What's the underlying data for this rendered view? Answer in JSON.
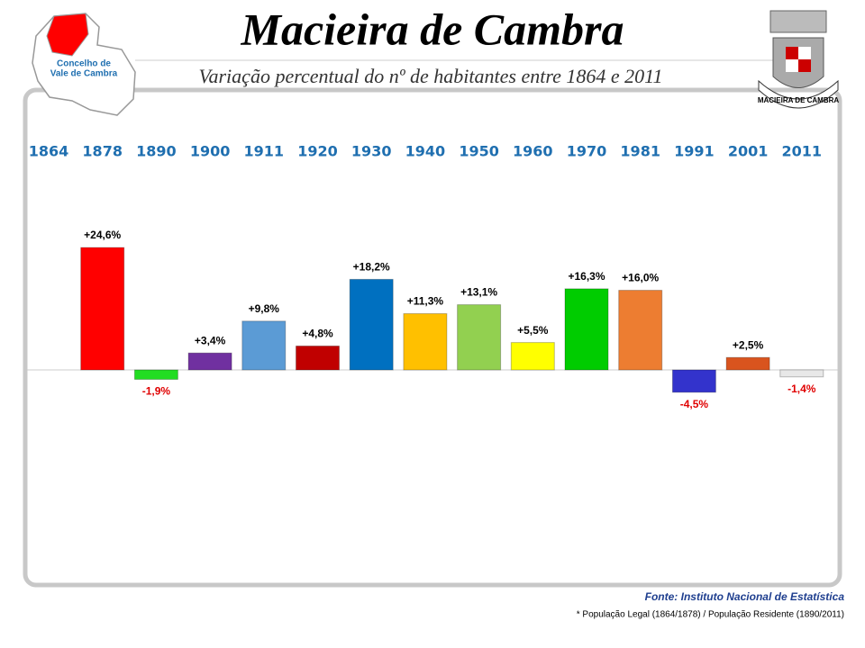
{
  "chart_data": {
    "type": "bar",
    "title": "Macieira de Cambra",
    "subtitle": "Variação percentual do nº de habitantes entre 1864 e 2011",
    "categories": [
      "1864",
      "1878",
      "1890",
      "1900",
      "1911",
      "1920",
      "1930",
      "1940",
      "1950",
      "1960",
      "1970",
      "1981",
      "1991",
      "2001",
      "2011"
    ],
    "values": [
      null,
      24.6,
      -1.9,
      3.4,
      9.8,
      4.8,
      18.2,
      11.3,
      13.1,
      5.5,
      16.3,
      16.0,
      -4.5,
      2.5,
      -1.4
    ],
    "value_labels": [
      null,
      "+24,6%",
      "-1,9%",
      "+3,4%",
      "+9,8%",
      "+4,8%",
      "+18,2%",
      "+11,3%",
      "+13,1%",
      "+5,5%",
      "+16,3%",
      "+16,0%",
      "-4,5%",
      "+2,5%",
      "-1,4%"
    ],
    "colors": [
      null,
      "#ff0000",
      "#22dd22",
      "#7030a0",
      "#5b9bd5",
      "#c00000",
      "#0070c0",
      "#ffc000",
      "#92d050",
      "#ffff00",
      "#00cc00",
      "#ed7d31",
      "#3333cc",
      "#d9541e",
      "#e8e8e8"
    ],
    "source": "Fonte: Instituto Nacional de Estatística",
    "footnote": "* População Legal (1864/1878) / População Residente (1890/2011)"
  },
  "map_label": [
    "Concelho de",
    "Vale de Cambra"
  ],
  "coat_of_arms_label": "MACIEIRA DE CAMBRA"
}
